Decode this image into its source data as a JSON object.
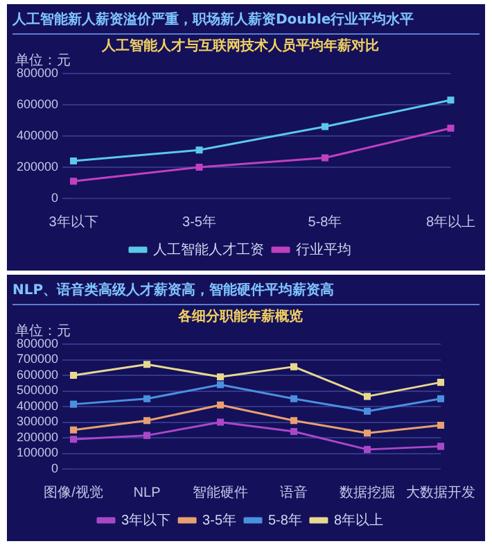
{
  "chart_data": [
    {
      "type": "line",
      "title": "人工智能新人薪资溢价严重，职场新人薪资Double行业平均水平",
      "subtitle": "人工智能人才与互联网技术人员平均年薪对比",
      "ylabel": "单位：元",
      "categories": [
        "3年以下",
        "3-5年",
        "5-8年",
        "8年以上"
      ],
      "series": [
        {
          "name": "人工智能人才工资",
          "color": "#5cc8e8",
          "values": [
            240000,
            310000,
            460000,
            630000
          ]
        },
        {
          "name": "行业平均",
          "color": "#c040c0",
          "values": [
            110000,
            200000,
            260000,
            450000
          ]
        }
      ],
      "ylim": [
        0,
        800000
      ],
      "yticks": [
        0,
        200000,
        400000,
        600000,
        800000
      ],
      "grid": "y",
      "legend": "bottom",
      "marker": "square",
      "line_style": "solid"
    },
    {
      "type": "line",
      "title": "NLP、语音类高级人才薪资高，智能硬件平均薪资高",
      "subtitle": "各细分职能年薪概览",
      "ylabel": "单位：元",
      "categories": [
        "图像/视觉",
        "NLP",
        "智能硬件",
        "语音",
        "数据挖掘",
        "大数据开发"
      ],
      "series": [
        {
          "name": "3年以下",
          "color": "#a848c8",
          "values": [
            190000,
            215000,
            300000,
            240000,
            125000,
            145000
          ]
        },
        {
          "name": "3-5年",
          "color": "#e8a070",
          "values": [
            250000,
            310000,
            410000,
            310000,
            230000,
            280000
          ]
        },
        {
          "name": "5-8年",
          "color": "#4a90e0",
          "values": [
            415000,
            450000,
            540000,
            450000,
            370000,
            450000
          ]
        },
        {
          "name": "8年以上",
          "color": "#e8d890",
          "values": [
            600000,
            670000,
            590000,
            655000,
            465000,
            555000
          ]
        }
      ],
      "ylim": [
        0,
        800000
      ],
      "yticks": [
        0,
        100000,
        200000,
        300000,
        400000,
        500000,
        600000,
        700000,
        800000
      ],
      "grid": "y",
      "legend": "bottom",
      "marker": "square",
      "line_style": "solid"
    }
  ]
}
